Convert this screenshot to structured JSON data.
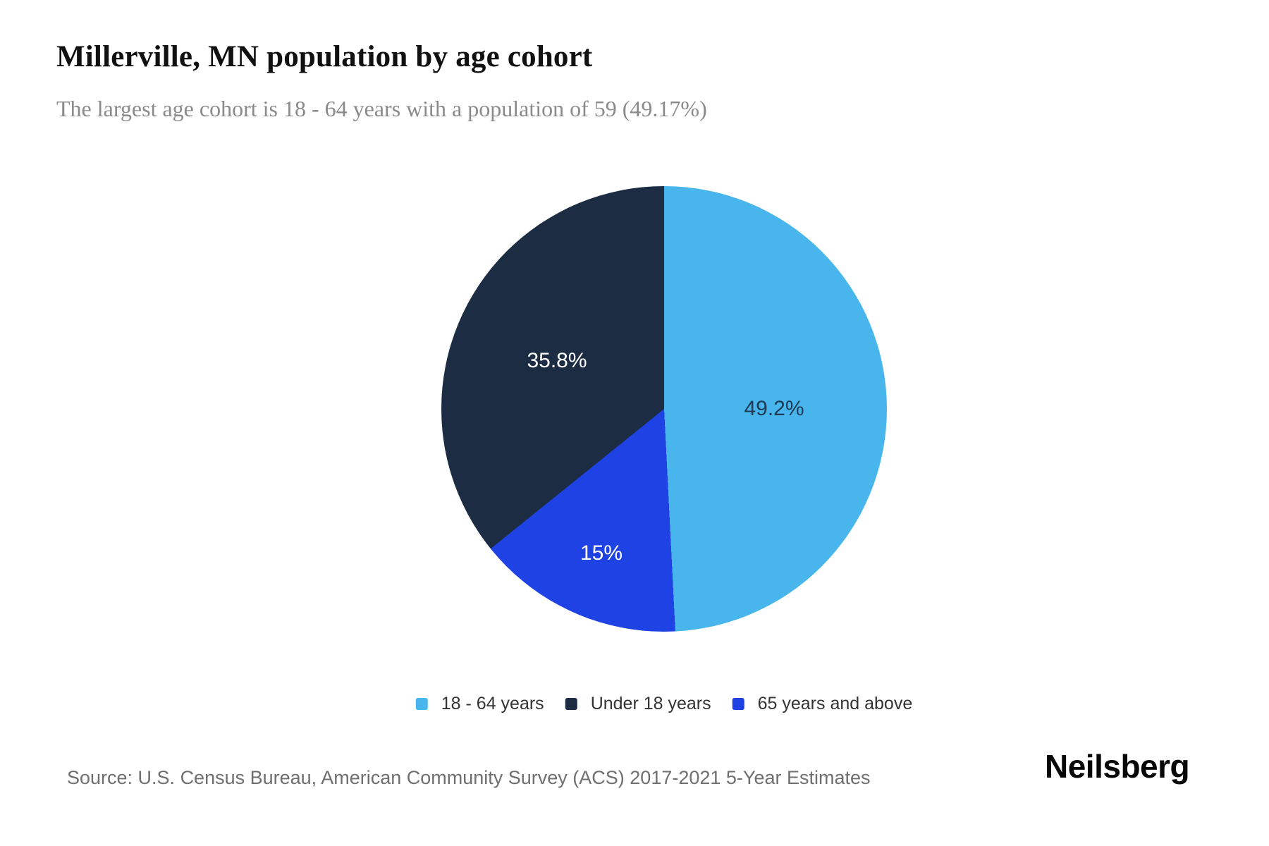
{
  "header": {
    "title": "Millerville, MN population by age cohort",
    "subtitle": "The largest age cohort is 18 - 64 years with a population of 59 (49.17%)"
  },
  "chart_data": {
    "type": "pie",
    "title": "Millerville, MN population by age cohort",
    "subtitle": "The largest age cohort is 18 - 64 years with a population of 59 (49.17%)",
    "unit": "percent",
    "start_angle_deg": 0,
    "direction": "clockwise",
    "largest_cohort": {
      "category": "18 - 64 years",
      "population": 59,
      "share_pct": 49.17
    },
    "slices": [
      {
        "category": "18 - 64 years",
        "value": 49.2,
        "data_label": "49.2%",
        "color": "#48b5ec",
        "label_color": "#1e3a54"
      },
      {
        "category": "65 years and above",
        "value": 15,
        "data_label": "15%",
        "color": "#1e42e4",
        "label_color": "#ffffff"
      },
      {
        "category": "Under 18 years",
        "value": 35.8,
        "data_label": "35.8%",
        "color": "#1b2c43",
        "label_color": "#ffffff"
      }
    ],
    "legend_position": "bottom"
  },
  "legend": {
    "items": [
      {
        "label": "18 - 64 years",
        "color": "#48b5ec"
      },
      {
        "label": "Under 18 years",
        "color": "#1b2c43"
      },
      {
        "label": "65 years and above",
        "color": "#1e42e4"
      }
    ]
  },
  "footer": {
    "source": "Source: U.S. Census Bureau, American Community Survey (ACS) 2017-2021 5-Year Estimates",
    "brand": "Neilsberg"
  }
}
